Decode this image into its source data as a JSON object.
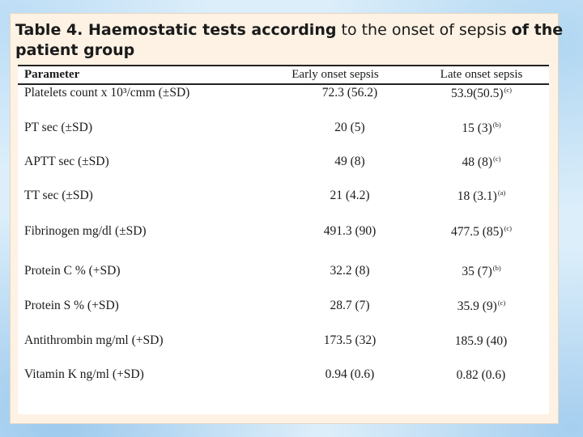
{
  "slide": {
    "title_parts": [
      {
        "text": "Table 4. Haemostatic tests according",
        "bold": true
      },
      {
        "text": " to the onset of sepsis ",
        "bold": false
      },
      {
        "text": "of the patient group",
        "bold": true
      }
    ]
  },
  "table": {
    "headers": [
      "Parameter",
      "Early onset sepsis",
      "Late onset sepsis"
    ],
    "rows": [
      {
        "param": "Platelets count x 10³/cmm (±SD)",
        "early": "72.3 (56.2)",
        "late": "53.9(50.5)",
        "late_sup": "(c)"
      },
      {
        "param": "PT  sec (±SD)",
        "early": "20  (5)",
        "late": "15 (3)",
        "late_sup": "(b)"
      },
      {
        "param": "APTT  sec (±SD)",
        "early": "49   (8)",
        "late": "48 (8)",
        "late_sup": "(c)"
      },
      {
        "param": "TT  sec (±SD)",
        "early": "21   (4.2)",
        "late": "18 (3.1)",
        "late_sup": "(a)"
      },
      {
        "param": "Fibrinogen mg/dl  (±SD)",
        "early": "491.3  (90)",
        "late": "477.5 (85)",
        "late_sup": "(c)"
      },
      {
        "param": "Protein C % (+SD)",
        "early": "32.2 (8)",
        "late": "35 (7)",
        "late_sup": "(b)"
      },
      {
        "param": "Protein S % (+SD)",
        "early": "28.7  (7)",
        "late": "35.9  (9)",
        "late_sup": "(c)"
      },
      {
        "param": "Antithrombin mg/ml (+SD)",
        "early": "173.5 (32)",
        "late": "185.9 (40)",
        "late_sup": ""
      },
      {
        "param": "Vitamin K  ng/ml  (+SD)",
        "early": "0.94 (0.6)",
        "late": "0.82 (0.6)",
        "late_sup": ""
      }
    ]
  }
}
